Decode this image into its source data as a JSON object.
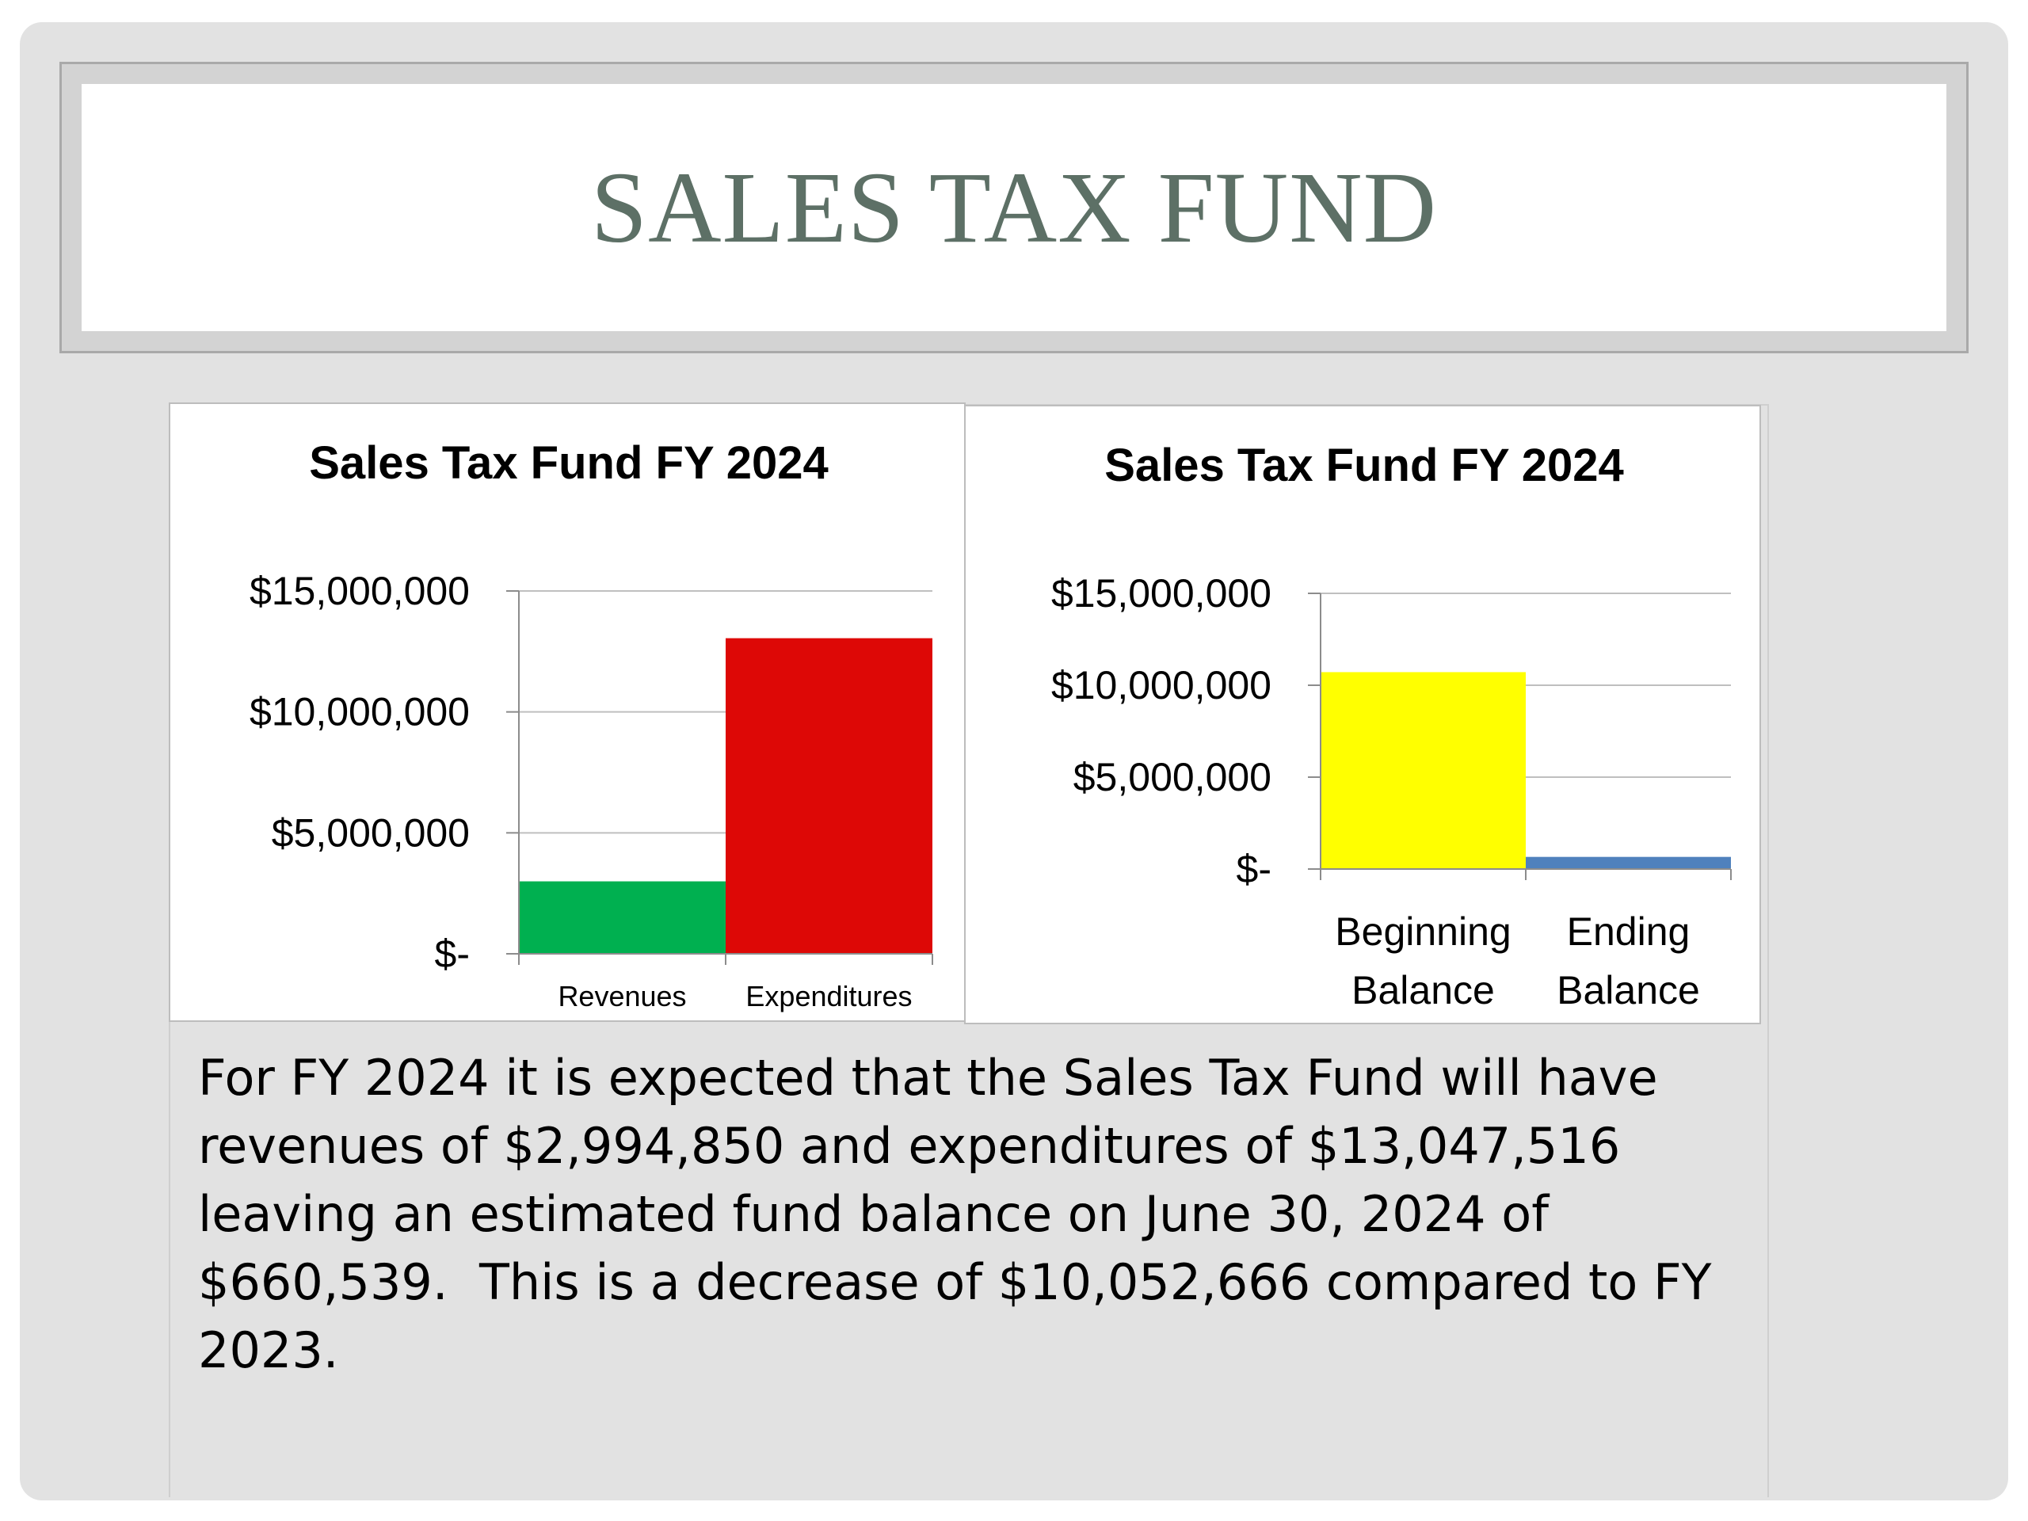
{
  "slide": {
    "title": "SALES TAX FUND",
    "body_text": "For FY 2024 it is expected that the Sales Tax Fund will have revenues of $2,994,850 and expenditures of $13,047,516 leaving an estimated fund balance on June 30, 2024 of $660,539.  This is a decrease of $10,052,666 compared to FY 2023."
  },
  "chart_data": [
    {
      "type": "bar",
      "title": "Sales Tax Fund FY 2024",
      "categories": [
        "Revenues",
        "Expenditures"
      ],
      "values": [
        2994850,
        13047516
      ],
      "colors": [
        "#00b050",
        "#dd0806"
      ],
      "ylim": [
        0,
        15000000
      ],
      "yticks": [
        0,
        5000000,
        10000000,
        15000000
      ],
      "ytick_labels": [
        "$-",
        "$5,000,000",
        "$10,000,000",
        "$15,000,000"
      ],
      "grid": true,
      "legend": "none"
    },
    {
      "type": "bar",
      "title": "Sales Tax Fund FY 2024",
      "categories": [
        "Beginning Balance",
        "Ending Balance"
      ],
      "category_lines": [
        [
          "Beginning",
          "Balance"
        ],
        [
          "Ending",
          "Balance"
        ]
      ],
      "values": [
        10713205,
        660539
      ],
      "colors": [
        "#ffff00",
        "#4f81bd"
      ],
      "ylim": [
        0,
        15000000
      ],
      "yticks": [
        0,
        5000000,
        10000000,
        15000000
      ],
      "ytick_labels": [
        "$-",
        "$5,000,000",
        "$10,000,000",
        "$15,000,000"
      ],
      "grid": true,
      "legend": "none"
    }
  ]
}
